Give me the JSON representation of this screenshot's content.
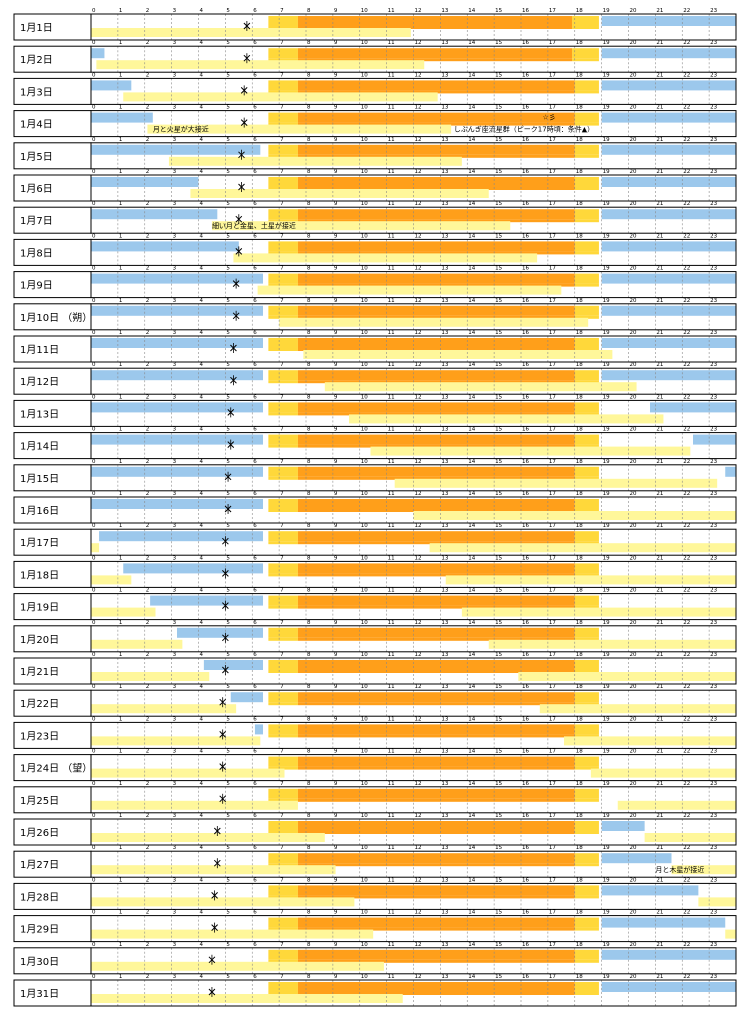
{
  "chart_data": {
    "type": "timeline",
    "hours": [
      "0",
      "1",
      "2",
      "3",
      "4",
      "5",
      "6",
      "7",
      "8",
      "9",
      "10",
      "11",
      "12",
      "13",
      "14",
      "15",
      "16",
      "17",
      "18",
      "19",
      "20",
      "21",
      "22",
      "23"
    ],
    "colors": {
      "night": "#9cc8ec",
      "twilight_yellow": "#ffd83a",
      "day_orange": "#ff9f1a",
      "moon": "#fff79a",
      "frame": "#000000",
      "grid": "#888888"
    },
    "days": [
      {
        "label": "1月1日",
        "night_am": [
          0,
          0
        ],
        "day": [
          7.7,
          17.9
        ],
        "tw_am": [
          6.6,
          7.7
        ],
        "tw_pm": [
          17.9,
          18.9
        ],
        "night_pm": [
          19.0,
          24
        ],
        "moon": [
          0,
          11.9
        ],
        "ninja": 5.8
      },
      {
        "label": "1月2日",
        "night_am": [
          0,
          0.5
        ],
        "day": [
          7.7,
          17.9
        ],
        "tw_am": [
          6.6,
          7.7
        ],
        "tw_pm": [
          17.9,
          18.9
        ],
        "night_pm": [
          19.0,
          24
        ],
        "moon": [
          0.2,
          12.4
        ],
        "ninja": 5.8
      },
      {
        "label": "1月3日",
        "night_am": [
          0,
          1.5
        ],
        "day": [
          7.7,
          18.0
        ],
        "tw_am": [
          6.6,
          7.7
        ],
        "tw_pm": [
          18.0,
          18.9
        ],
        "night_pm": [
          19.0,
          24
        ],
        "moon": [
          1.2,
          12.9
        ],
        "ninja": 5.7
      },
      {
        "label": "1月4日",
        "night_am": [
          0,
          2.3
        ],
        "day": [
          7.7,
          18.0
        ],
        "tw_am": [
          6.6,
          7.7
        ],
        "tw_pm": [
          18.0,
          18.9
        ],
        "night_pm": [
          19.0,
          24
        ],
        "moon": [
          2.1,
          13.4
        ],
        "ninja": 5.7
      },
      {
        "label": "1月5日",
        "night_am": [
          0,
          6.3
        ],
        "day": [
          7.7,
          18.0
        ],
        "tw_am": [
          6.6,
          7.7
        ],
        "tw_pm": [
          18.0,
          18.9
        ],
        "night_pm": [
          19.0,
          24
        ],
        "moon": [
          2.9,
          13.8
        ],
        "ninja": 5.6
      },
      {
        "label": "1月6日",
        "night_am": [
          0,
          4.0
        ],
        "day": [
          7.7,
          18.0
        ],
        "tw_am": [
          6.6,
          7.7
        ],
        "tw_pm": [
          18.0,
          18.9
        ],
        "night_pm": [
          19.0,
          24
        ],
        "moon": [
          3.7,
          14.8
        ],
        "ninja": 5.6
      },
      {
        "label": "1月7日",
        "night_am": [
          0,
          4.7
        ],
        "day": [
          7.7,
          18.0
        ],
        "tw_am": [
          6.6,
          7.7
        ],
        "tw_pm": [
          18.0,
          18.9
        ],
        "night_pm": [
          19.0,
          24
        ],
        "moon": [
          4.5,
          15.6
        ],
        "ninja": 5.5
      },
      {
        "label": "1月8日",
        "night_am": [
          0,
          5.5
        ],
        "day": [
          7.7,
          18.0
        ],
        "tw_am": [
          6.6,
          7.7
        ],
        "tw_pm": [
          18.0,
          18.9
        ],
        "night_pm": [
          19.0,
          24
        ],
        "moon": [
          5.3,
          16.6
        ],
        "ninja": 5.5
      },
      {
        "label": "1月9日",
        "night_am": [
          0,
          6.4
        ],
        "day": [
          7.7,
          18.0
        ],
        "tw_am": [
          6.6,
          7.7
        ],
        "tw_pm": [
          18.0,
          18.9
        ],
        "night_pm": [
          19.0,
          24
        ],
        "moon": [
          6.2,
          17.5
        ],
        "ninja": 5.4
      },
      {
        "label": "1月10日 （朔）",
        "night_am": [
          0,
          6.4
        ],
        "day": [
          7.7,
          18.0
        ],
        "tw_am": [
          6.6,
          7.7
        ],
        "tw_pm": [
          18.0,
          18.9
        ],
        "night_pm": [
          19.0,
          24
        ],
        "moon": [
          7.0,
          18.5
        ],
        "ninja": 5.4
      },
      {
        "label": "1月11日",
        "night_am": [
          0,
          6.4
        ],
        "day": [
          7.7,
          18.0
        ],
        "tw_am": [
          6.6,
          7.7
        ],
        "tw_pm": [
          18.0,
          18.9
        ],
        "night_pm": [
          19.0,
          24
        ],
        "moon": [
          7.9,
          19.4
        ],
        "ninja": 5.3
      },
      {
        "label": "1月12日",
        "night_am": [
          0,
          6.4
        ],
        "day": [
          7.7,
          18.0
        ],
        "tw_am": [
          6.6,
          7.7
        ],
        "tw_pm": [
          18.0,
          18.9
        ],
        "night_pm": [
          19.0,
          24
        ],
        "moon": [
          8.7,
          20.3
        ],
        "ninja": 5.3
      },
      {
        "label": "1月13日",
        "night_am": [
          0,
          6.4
        ],
        "day": [
          7.7,
          18.0
        ],
        "tw_am": [
          6.6,
          7.7
        ],
        "tw_pm": [
          18.0,
          18.9
        ],
        "night_pm": [
          20.8,
          24
        ],
        "moon": [
          9.6,
          21.3
        ],
        "ninja": 5.2
      },
      {
        "label": "1月14日",
        "night_am": [
          0,
          6.4
        ],
        "day": [
          7.7,
          18.0
        ],
        "tw_am": [
          6.6,
          7.7
        ],
        "tw_pm": [
          18.0,
          18.9
        ],
        "night_pm": [
          22.4,
          24
        ],
        "moon": [
          10.4,
          22.3
        ],
        "ninja": 5.2
      },
      {
        "label": "1月15日",
        "night_am": [
          0,
          6.4
        ],
        "day": [
          7.7,
          18.0
        ],
        "tw_am": [
          6.6,
          7.7
        ],
        "tw_pm": [
          18.0,
          18.9
        ],
        "night_pm": [
          23.6,
          24
        ],
        "moon": [
          11.3,
          23.3
        ],
        "ninja": 5.1
      },
      {
        "label": "1月16日",
        "night_am": [
          0,
          6.4
        ],
        "day": [
          7.7,
          18.0
        ],
        "tw_am": [
          6.6,
          7.7
        ],
        "tw_pm": [
          18.0,
          18.9
        ],
        "night_pm": [
          0,
          0
        ],
        "moon": [
          12.0,
          24
        ],
        "ninja": 5.1
      },
      {
        "label": "1月17日",
        "night_am": [
          0.3,
          6.4
        ],
        "day": [
          7.7,
          18.0
        ],
        "tw_am": [
          6.6,
          7.7
        ],
        "tw_pm": [
          18.0,
          18.9
        ],
        "night_pm": [
          0,
          0
        ],
        "moon": [
          12.6,
          24
        ],
        "ninja": 5.0,
        "moon2": [
          0,
          0.3
        ]
      },
      {
        "label": "1月18日",
        "night_am": [
          1.2,
          6.4
        ],
        "day": [
          7.7,
          18.0
        ],
        "tw_am": [
          6.6,
          7.7
        ],
        "tw_pm": [
          18.0,
          18.9
        ],
        "night_pm": [
          0,
          0
        ],
        "moon": [
          13.2,
          24
        ],
        "ninja": 5.0,
        "moon2": [
          0,
          1.5
        ]
      },
      {
        "label": "1月19日",
        "night_am": [
          2.2,
          6.4
        ],
        "day": [
          7.7,
          18.0
        ],
        "tw_am": [
          6.6,
          7.7
        ],
        "tw_pm": [
          18.0,
          18.9
        ],
        "night_pm": [
          0,
          0
        ],
        "moon": [
          13.8,
          24
        ],
        "ninja": 5.0,
        "moon2": [
          0,
          2.4
        ]
      },
      {
        "label": "1月20日",
        "night_am": [
          3.2,
          6.4
        ],
        "day": [
          7.7,
          18.0
        ],
        "tw_am": [
          6.6,
          7.7
        ],
        "tw_pm": [
          18.0,
          18.9
        ],
        "night_pm": [
          0,
          0
        ],
        "moon": [
          14.8,
          24
        ],
        "ninja": 5.0,
        "moon2": [
          0,
          3.4
        ]
      },
      {
        "label": "1月21日",
        "night_am": [
          4.2,
          6.4
        ],
        "day": [
          7.7,
          18.0
        ],
        "tw_am": [
          6.6,
          7.7
        ],
        "tw_pm": [
          18.0,
          18.9
        ],
        "night_pm": [
          0,
          0
        ],
        "moon": [
          15.9,
          24
        ],
        "ninja": 5.0,
        "moon2": [
          0,
          4.4
        ]
      },
      {
        "label": "1月22日",
        "night_am": [
          5.2,
          6.4
        ],
        "day": [
          7.7,
          18.0
        ],
        "tw_am": [
          6.6,
          7.7
        ],
        "tw_pm": [
          18.0,
          18.9
        ],
        "night_pm": [
          0,
          0
        ],
        "moon": [
          16.7,
          24
        ],
        "ninja": 4.9,
        "moon2": [
          0,
          5.4
        ]
      },
      {
        "label": "1月23日",
        "night_am": [
          6.1,
          6.4
        ],
        "day": [
          7.7,
          18.0
        ],
        "tw_am": [
          6.6,
          7.7
        ],
        "tw_pm": [
          18.0,
          18.9
        ],
        "night_pm": [
          0,
          0
        ],
        "moon": [
          17.6,
          24
        ],
        "ninja": 4.9,
        "moon2": [
          0,
          6.3
        ]
      },
      {
        "label": "1月24日 （望）",
        "night_am": [
          0,
          0
        ],
        "day": [
          7.7,
          18.0
        ],
        "tw_am": [
          6.6,
          7.7
        ],
        "tw_pm": [
          18.0,
          18.9
        ],
        "night_pm": [
          0,
          0
        ],
        "moon": [
          18.6,
          24
        ],
        "ninja": 4.9,
        "moon2": [
          0,
          7.2
        ]
      },
      {
        "label": "1月25日",
        "night_am": [
          0,
          0
        ],
        "day": [
          7.7,
          18.0
        ],
        "tw_am": [
          6.6,
          7.7
        ],
        "tw_pm": [
          18.0,
          18.9
        ],
        "night_pm": [
          0,
          0
        ],
        "moon": [
          19.6,
          24
        ],
        "ninja": 4.9,
        "moon2": [
          0,
          7.7
        ]
      },
      {
        "label": "1月26日",
        "night_am": [
          0,
          0
        ],
        "day": [
          7.7,
          18.0
        ],
        "tw_am": [
          6.6,
          7.7
        ],
        "tw_pm": [
          18.0,
          18.9
        ],
        "night_pm": [
          19.0,
          20.6
        ],
        "moon": [
          20.6,
          24
        ],
        "ninja": 4.7,
        "moon2": [
          0,
          8.7
        ]
      },
      {
        "label": "1月27日",
        "night_am": [
          0,
          0
        ],
        "day": [
          7.7,
          18.0
        ],
        "tw_am": [
          6.6,
          7.7
        ],
        "tw_pm": [
          18.0,
          18.9
        ],
        "night_pm": [
          19.0,
          21.6
        ],
        "moon": [
          21.6,
          24
        ],
        "ninja": 4.7,
        "moon2": [
          0,
          9.1
        ]
      },
      {
        "label": "1月28日",
        "night_am": [
          0,
          0
        ],
        "day": [
          7.7,
          18.0
        ],
        "tw_am": [
          6.6,
          7.7
        ],
        "tw_pm": [
          18.0,
          18.9
        ],
        "night_pm": [
          19.0,
          22.6
        ],
        "moon": [
          22.6,
          24
        ],
        "ninja": 4.6,
        "moon2": [
          0,
          9.8
        ]
      },
      {
        "label": "1月29日",
        "night_am": [
          0,
          0
        ],
        "day": [
          7.7,
          18.0
        ],
        "tw_am": [
          6.6,
          7.7
        ],
        "tw_pm": [
          18.0,
          18.9
        ],
        "night_pm": [
          19.0,
          23.6
        ],
        "moon": [
          23.6,
          24
        ],
        "ninja": 4.6,
        "moon2": [
          0,
          10.5
        ]
      },
      {
        "label": "1月30日",
        "night_am": [
          0,
          0
        ],
        "day": [
          7.7,
          18.0
        ],
        "tw_am": [
          6.6,
          7.7
        ],
        "tw_pm": [
          18.0,
          18.9
        ],
        "night_pm": [
          19.0,
          24
        ],
        "moon": [
          0,
          0
        ],
        "ninja": 4.5,
        "moon2": [
          0,
          10.9
        ]
      },
      {
        "label": "1月31日",
        "night_am": [
          0,
          0
        ],
        "day": [
          7.7,
          18.0
        ],
        "tw_am": [
          6.6,
          7.7
        ],
        "tw_pm": [
          18.0,
          18.9
        ],
        "night_pm": [
          19.0,
          24
        ],
        "moon": [
          0,
          0
        ],
        "ninja": 4.5,
        "moon2": [
          0,
          11.6
        ]
      }
    ],
    "annotations": [
      {
        "day": 3,
        "hour": 2.3,
        "text": "月と火星が大接近"
      },
      {
        "day": 3,
        "hour": 16.8,
        "text": "☆彡"
      },
      {
        "day": 3,
        "hour": 13.5,
        "text": "しぶんぎ座流星群（ピーク17時頃：条件▲）"
      },
      {
        "day": 6,
        "hour": 4.5,
        "text": "細い月と金星、土星が接近"
      },
      {
        "day": 26,
        "hour": 21.0,
        "text": "月と木星が接近"
      }
    ]
  }
}
